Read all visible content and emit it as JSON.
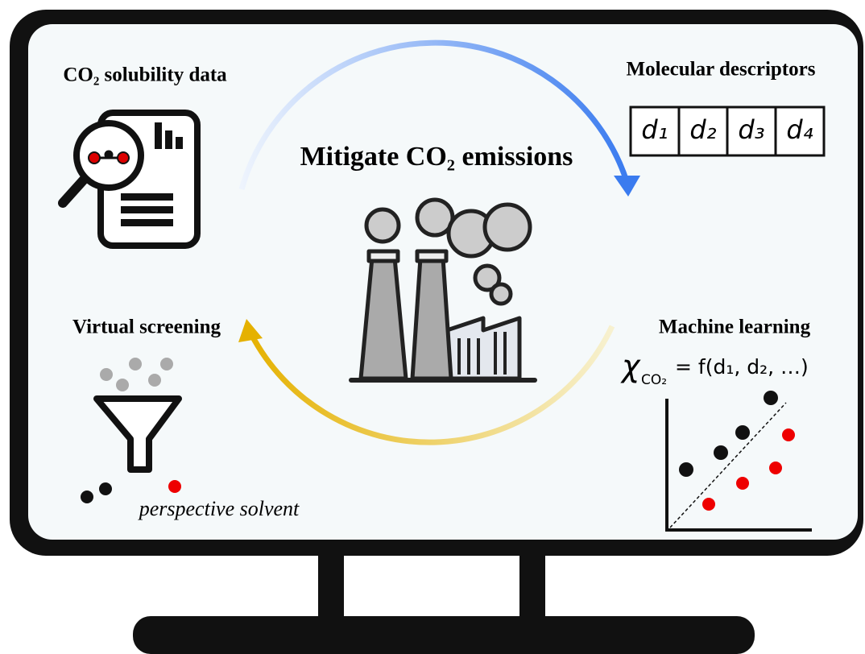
{
  "labels": {
    "solubility": "CO₂ solubility data",
    "descriptors": "Molecular descriptors",
    "center": "Mitigate CO₂ emissions",
    "screening": "Virtual screening",
    "learning": "Machine learning",
    "solvent": "perspective solvent"
  },
  "descriptors": [
    "d₁",
    "d₂",
    "d₃",
    "d₄"
  ],
  "formula": {
    "symbol": "χ",
    "subscript": "CO₂",
    "rhs": "= f(d₁, d₂, …)"
  }
}
